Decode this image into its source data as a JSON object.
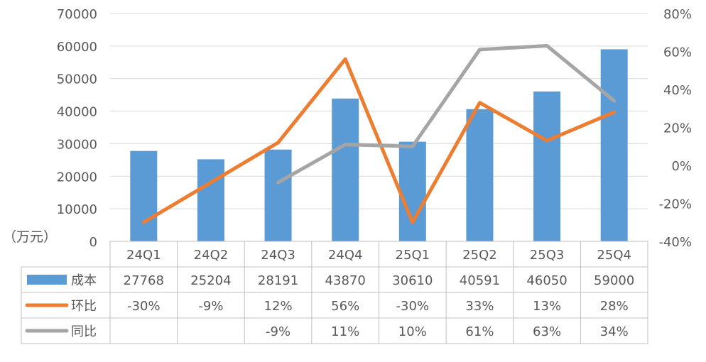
{
  "chart_data": {
    "type": "bar",
    "categories": [
      "24Q1",
      "24Q2",
      "24Q3",
      "24Q4",
      "25Q1",
      "25Q2",
      "25Q3",
      "25Q4"
    ],
    "unit_label": "（万元）",
    "y_left": {
      "min": 0,
      "max": 70000,
      "step": 10000,
      "ticks": [
        "0",
        "10000",
        "20000",
        "30000",
        "40000",
        "50000",
        "60000",
        "70000"
      ]
    },
    "y_right": {
      "min": -40,
      "max": 80,
      "step": 20,
      "ticks": [
        "-40%",
        "-20%",
        "0%",
        "20%",
        "40%",
        "60%",
        "80%"
      ]
    },
    "grid": true,
    "legend_placement": "data-table-left",
    "series": [
      {
        "name": "成本",
        "kind": "bar",
        "axis": "left",
        "color": "#5B9BD5",
        "values": [
          27768,
          25204,
          28191,
          43870,
          30610,
          40591,
          46050,
          59000
        ],
        "table_labels": [
          "27768",
          "25204",
          "28191",
          "43870",
          "30610",
          "40591",
          "46050",
          "59000"
        ]
      },
      {
        "name": "环比",
        "kind": "line",
        "axis": "right",
        "color": "#ED7D31",
        "values": [
          -30,
          -9,
          12,
          56,
          -30,
          33,
          13,
          28
        ],
        "table_labels": [
          "-30%",
          "-9%",
          "12%",
          "56%",
          "-30%",
          "33%",
          "13%",
          "28%"
        ]
      },
      {
        "name": "同比",
        "kind": "line",
        "axis": "right",
        "color": "#A5A5A5",
        "values": [
          null,
          null,
          -9,
          11,
          10,
          61,
          63,
          34
        ],
        "table_labels": [
          "",
          "",
          "-9%",
          "11%",
          "10%",
          "61%",
          "63%",
          "34%"
        ]
      }
    ]
  }
}
